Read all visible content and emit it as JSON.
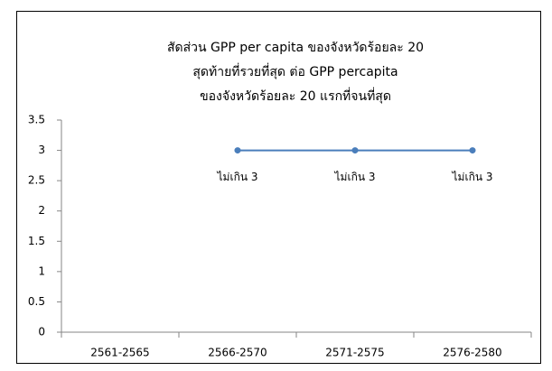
{
  "chart_data": {
    "type": "line",
    "title": [
      "สัดส่วน GPP per capita ของจังหวัดร้อยละ 20",
      "สุดท้ายที่รวยที่สุด ต่อ GPP percapita",
      "ของจังหวัดร้อยละ 20 แรกที่จนที่สุด"
    ],
    "categories": [
      "2561-2565",
      "2566-2570",
      "2571-2575",
      "2576-2580"
    ],
    "series": [
      {
        "name": null,
        "color": "#4a7ebb",
        "values": [
          null,
          3,
          3,
          3
        ],
        "value_labels": [
          null,
          "ไม่เกิน 3",
          "ไม่เกิน 3",
          "ไม่เกิน 3"
        ]
      }
    ],
    "ylim": [
      0,
      3.5
    ],
    "yticks": [
      0,
      0.5,
      1,
      1.5,
      2,
      2.5,
      3,
      3.5
    ],
    "grid": false
  }
}
